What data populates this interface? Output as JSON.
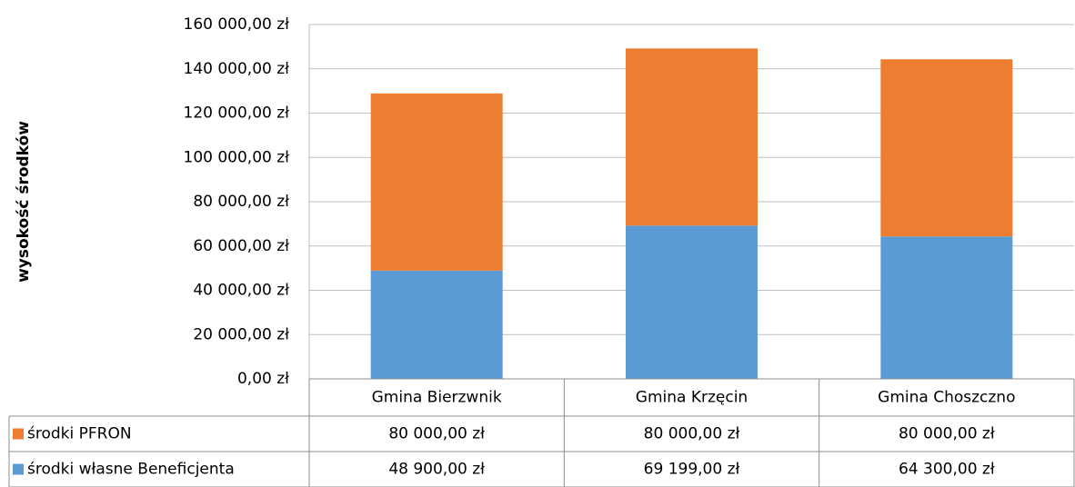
{
  "chart_data": {
    "type": "stacked_bar",
    "y_label": "wysokość środków",
    "categories": [
      "Gmina Bierzwnik",
      "Gmina Krzęcin",
      "Gmina Choszczno"
    ],
    "series": [
      {
        "name": "środki PFRON",
        "color": "#ed7d31",
        "values": [
          80000,
          80000,
          80000
        ],
        "value_labels": [
          "80 000,00 zł",
          "80 000,00 zł",
          "80 000,00 zł"
        ]
      },
      {
        "name": "środki własne Beneficjenta",
        "color": "#5b9bd5",
        "values": [
          48900,
          69199,
          64300
        ],
        "value_labels": [
          "48 900,00 zł",
          "69 199,00 zł",
          "64 300,00 zł"
        ]
      }
    ],
    "ylim": [
      0,
      160000
    ],
    "yticks": [
      {
        "value": 0,
        "label": "0,00 zł"
      },
      {
        "value": 20000,
        "label": "20 000,00 zł"
      },
      {
        "value": 40000,
        "label": "40 000,00 zł"
      },
      {
        "value": 60000,
        "label": "60 000,00 zł"
      },
      {
        "value": 80000,
        "label": "80 000,00 zł"
      },
      {
        "value": 100000,
        "label": "100 000,00 zł"
      },
      {
        "value": 120000,
        "label": "120 000,00 zł"
      },
      {
        "value": 140000,
        "label": "140 000,00 zł"
      },
      {
        "value": 160000,
        "label": "160 000,00 zł"
      }
    ],
    "grid": true,
    "data_table": true
  }
}
